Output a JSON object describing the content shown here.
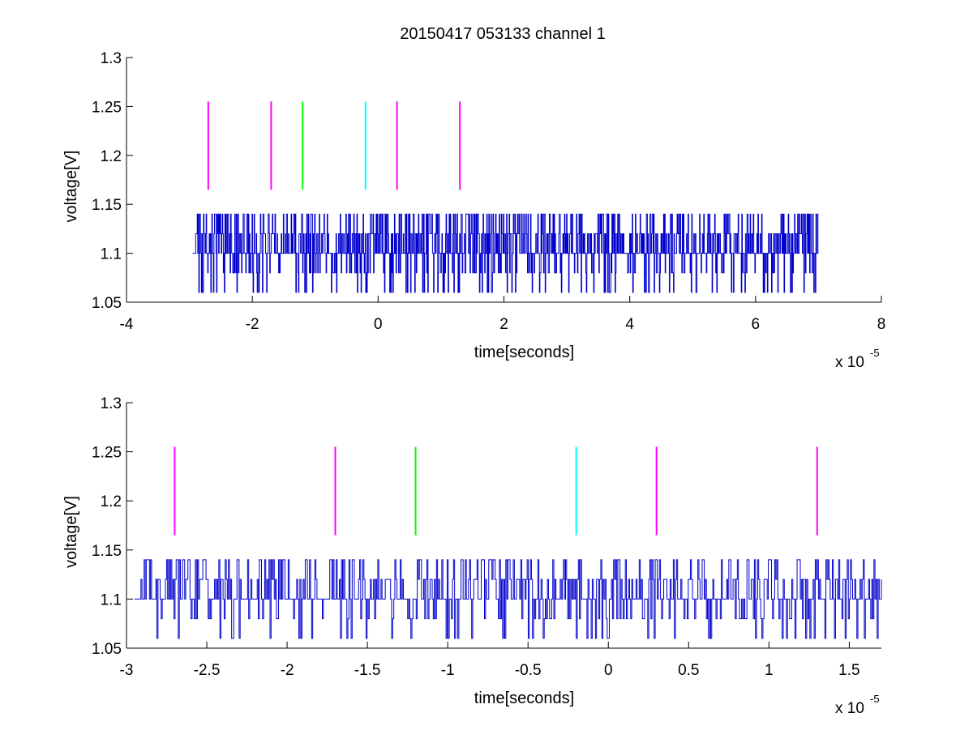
{
  "figure": {
    "title": "20150417 053133 channel 1"
  },
  "chart_data": [
    {
      "type": "line",
      "title": "20150417 053133 channel 1",
      "xlabel": "time[seconds]",
      "ylabel": "voltage[V]",
      "x_exponent_label": "x 10",
      "x_exponent": "-5",
      "xlim": [
        -4,
        8
      ],
      "ylim": [
        1.05,
        1.3
      ],
      "xticks": [
        -4,
        -2,
        0,
        2,
        4,
        6,
        8
      ],
      "xtick_labels": [
        "-4",
        "-2",
        "0",
        "2",
        "4",
        "6",
        "8"
      ],
      "yticks": [
        1.05,
        1.1,
        1.15,
        1.2,
        1.25,
        1.3
      ],
      "ytick_labels": [
        "1.05",
        "1.1",
        "1.15",
        "1.2",
        "1.25",
        "1.3"
      ],
      "grid": false,
      "series": [
        {
          "color": "#0000cc",
          "x_start": -2.95,
          "x_end": 7.0,
          "baseline": 1.1,
          "levels": [
            1.06,
            1.08,
            1.1,
            1.12,
            1.14
          ],
          "note_values": "quantized noisy trace around 1.1 V, values between 1.06 and 1.14"
        }
      ],
      "markers": [
        {
          "x": -2.7,
          "y_from": 1.165,
          "y_to": 1.255,
          "color": "#ff00ff"
        },
        {
          "x": -1.7,
          "y_from": 1.165,
          "y_to": 1.255,
          "color": "#ff00ff"
        },
        {
          "x": -1.2,
          "y_from": 1.165,
          "y_to": 1.255,
          "color": "#00ff00"
        },
        {
          "x": -0.2,
          "y_from": 1.165,
          "y_to": 1.255,
          "color": "#00ffff"
        },
        {
          "x": 0.3,
          "y_from": 1.165,
          "y_to": 1.255,
          "color": "#ff00ff"
        },
        {
          "x": 1.3,
          "y_from": 1.165,
          "y_to": 1.255,
          "color": "#ff00ff"
        }
      ]
    },
    {
      "type": "line",
      "title": "",
      "xlabel": "time[seconds]",
      "ylabel": "voltage[V]",
      "x_exponent_label": "x 10",
      "x_exponent": "-5",
      "xlim": [
        -3.0,
        1.7
      ],
      "ylim": [
        1.05,
        1.3
      ],
      "xticks": [
        -3,
        -2.5,
        -2,
        -1.5,
        -1,
        -0.5,
        0,
        0.5,
        1,
        1.5
      ],
      "xtick_labels": [
        "-3",
        "-2.5",
        "-2",
        "-1.5",
        "-1",
        "-0.5",
        "0",
        "0.5",
        "1",
        "1.5"
      ],
      "yticks": [
        1.05,
        1.1,
        1.15,
        1.2,
        1.25,
        1.3
      ],
      "ytick_labels": [
        "1.05",
        "1.1",
        "1.15",
        "1.2",
        "1.25",
        "1.3"
      ],
      "grid": false,
      "series": [
        {
          "color": "#0000cc",
          "x_start": -2.95,
          "x_end": 1.7,
          "baseline": 1.1,
          "levels": [
            1.06,
            1.08,
            1.1,
            1.12,
            1.14
          ],
          "note_values": "quantized noisy trace around 1.1 V, values between 1.06 and 1.14"
        }
      ],
      "markers": [
        {
          "x": -2.7,
          "y_from": 1.165,
          "y_to": 1.255,
          "color": "#ff00ff"
        },
        {
          "x": -1.7,
          "y_from": 1.165,
          "y_to": 1.255,
          "color": "#ff00ff"
        },
        {
          "x": -1.2,
          "y_from": 1.165,
          "y_to": 1.255,
          "color": "#00ff00"
        },
        {
          "x": -0.2,
          "y_from": 1.165,
          "y_to": 1.255,
          "color": "#00ffff"
        },
        {
          "x": 0.3,
          "y_from": 1.165,
          "y_to": 1.255,
          "color": "#ff00ff"
        },
        {
          "x": 1.3,
          "y_from": 1.165,
          "y_to": 1.255,
          "color": "#ff00ff"
        }
      ]
    }
  ]
}
